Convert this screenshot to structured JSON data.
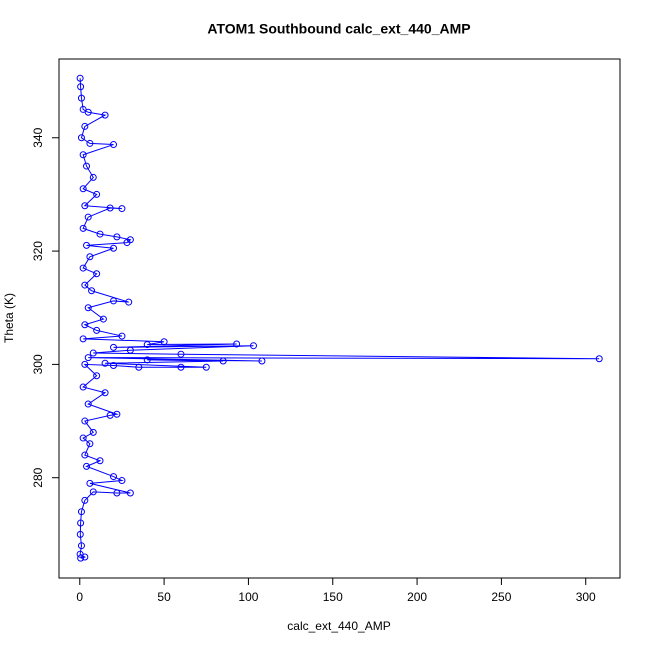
{
  "chart_data": {
    "type": "line",
    "markers": true,
    "title": "ATOM1 Southbound calc_ext_440_AMP",
    "x_label": "calc_ext_440_AMP",
    "y_label": "Theta (K)",
    "series": [
      {
        "color": "#0000ff",
        "x": [
          0.2,
          0.5,
          1,
          2,
          5,
          15,
          3,
          1,
          6,
          20,
          2,
          4,
          8,
          2,
          10,
          3,
          25,
          18,
          5,
          2,
          12,
          22,
          30,
          28,
          4,
          20,
          6,
          2,
          10,
          3,
          7,
          29,
          20,
          5,
          14,
          3,
          10,
          25,
          2,
          50,
          40,
          93,
          20,
          103,
          30,
          8,
          60,
          308,
          5,
          108,
          40,
          85,
          15,
          75,
          60,
          35,
          20,
          3,
          10,
          2,
          15,
          5,
          22,
          18,
          3,
          8,
          2,
          6,
          3,
          12,
          4,
          20,
          25,
          6,
          30,
          22,
          8,
          3,
          1,
          0.5,
          0.3,
          1,
          0.2,
          3,
          0.5
        ],
        "values": [
          350.5,
          349,
          347,
          345,
          344.5,
          344,
          342,
          340,
          339,
          338.8,
          337,
          335,
          333,
          331,
          330,
          328,
          327.5,
          327.6,
          326,
          324,
          323,
          322.5,
          322,
          321.5,
          321,
          320.5,
          319,
          317,
          316,
          314,
          313,
          311,
          311.2,
          310,
          308,
          307,
          306,
          305,
          304.5,
          304,
          303.5,
          303.6,
          303,
          303.3,
          302.5,
          302,
          301.8,
          301,
          301.2,
          300.6,
          300.8,
          300.6,
          300.2,
          299.5,
          299.5,
          299.5,
          299.8,
          300,
          298,
          296,
          295,
          293,
          291.2,
          291,
          290,
          288,
          287,
          286,
          284,
          283,
          282,
          280.2,
          279.5,
          279,
          277.3,
          277.3,
          277.5,
          276,
          274,
          272,
          270,
          268,
          266.5,
          266,
          265.8
        ]
      }
    ],
    "xlim": [
      -12.32,
      320.32
    ],
    "xticks": [
      0,
      50,
      100,
      150,
      200,
      250,
      300
    ],
    "ylim": [
      262.3,
      353.9
    ],
    "yticks": [
      280,
      300,
      320,
      340
    ]
  }
}
